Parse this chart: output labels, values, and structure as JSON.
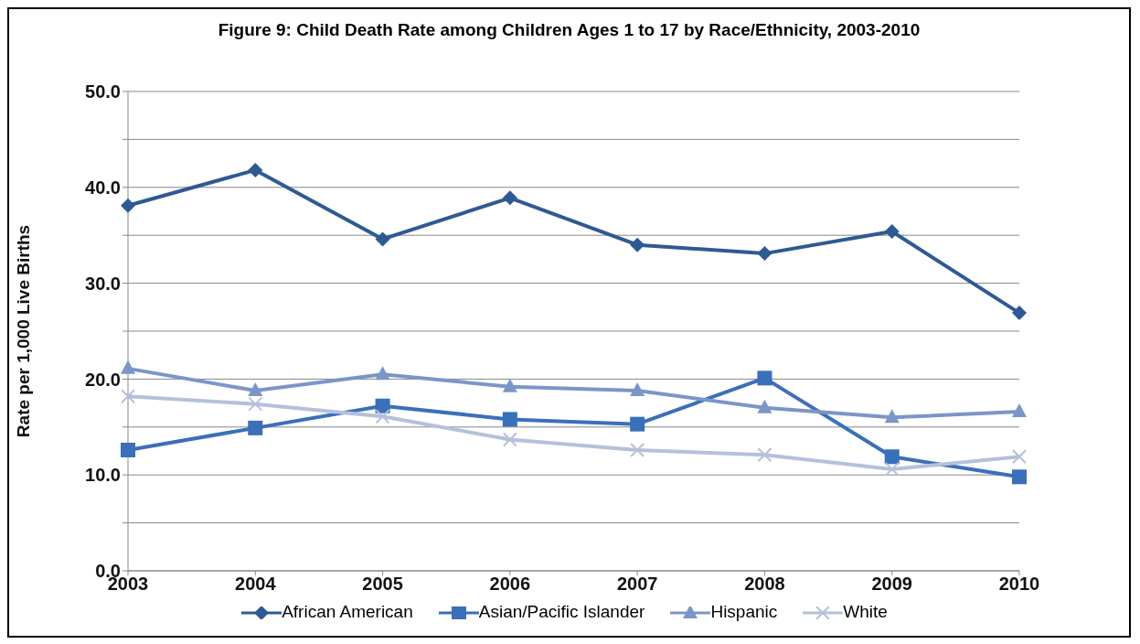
{
  "chart_data": {
    "type": "line",
    "title": "Figure 9: Child Death Rate among Children Ages 1 to 17 by Race/Ethnicity, 2003-2010",
    "ylabel": "Rate per 1,000 Live Births",
    "x": [
      2003,
      2004,
      2005,
      2006,
      2007,
      2008,
      2009,
      2010
    ],
    "xlim": [
      2003,
      2010
    ],
    "xticks": [
      2003,
      2004,
      2005,
      2006,
      2007,
      2008,
      2009,
      2010
    ],
    "ylim": [
      0,
      50
    ],
    "yticks": [
      {
        "value": 0,
        "label": "0.0"
      },
      {
        "value": 5,
        "label": null
      },
      {
        "value": 10,
        "label": "10.0"
      },
      {
        "value": 15,
        "label": null
      },
      {
        "value": 20,
        "label": "20.0"
      },
      {
        "value": 25,
        "label": null
      },
      {
        "value": 30,
        "label": "30.0"
      },
      {
        "value": 35,
        "label": null
      },
      {
        "value": 40,
        "label": "40.0"
      },
      {
        "value": 45,
        "label": null
      },
      {
        "value": 50,
        "label": "50.0"
      }
    ],
    "grid": "y",
    "legend": "bottom",
    "line_style": "solid",
    "series": [
      {
        "name": "African American",
        "color": "#2e5a94",
        "marker": "diamond",
        "values": [
          38.1,
          41.8,
          34.6,
          38.9,
          34.0,
          33.1,
          35.4,
          26.9
        ]
      },
      {
        "name": "Asian/Pacific Islander",
        "color": "#3a6fba",
        "marker": "square",
        "values": [
          12.6,
          14.9,
          17.2,
          15.8,
          15.3,
          20.1,
          11.9,
          9.8
        ]
      },
      {
        "name": "Hispanic",
        "color": "#7a96c8",
        "marker": "triangle",
        "values": [
          21.1,
          18.8,
          20.5,
          19.2,
          18.8,
          17.0,
          16.0,
          16.6
        ]
      },
      {
        "name": "White",
        "color": "#b4c0dc",
        "marker": "cross",
        "values": [
          18.2,
          17.4,
          16.1,
          13.7,
          12.6,
          12.1,
          10.6,
          11.9
        ]
      }
    ]
  }
}
